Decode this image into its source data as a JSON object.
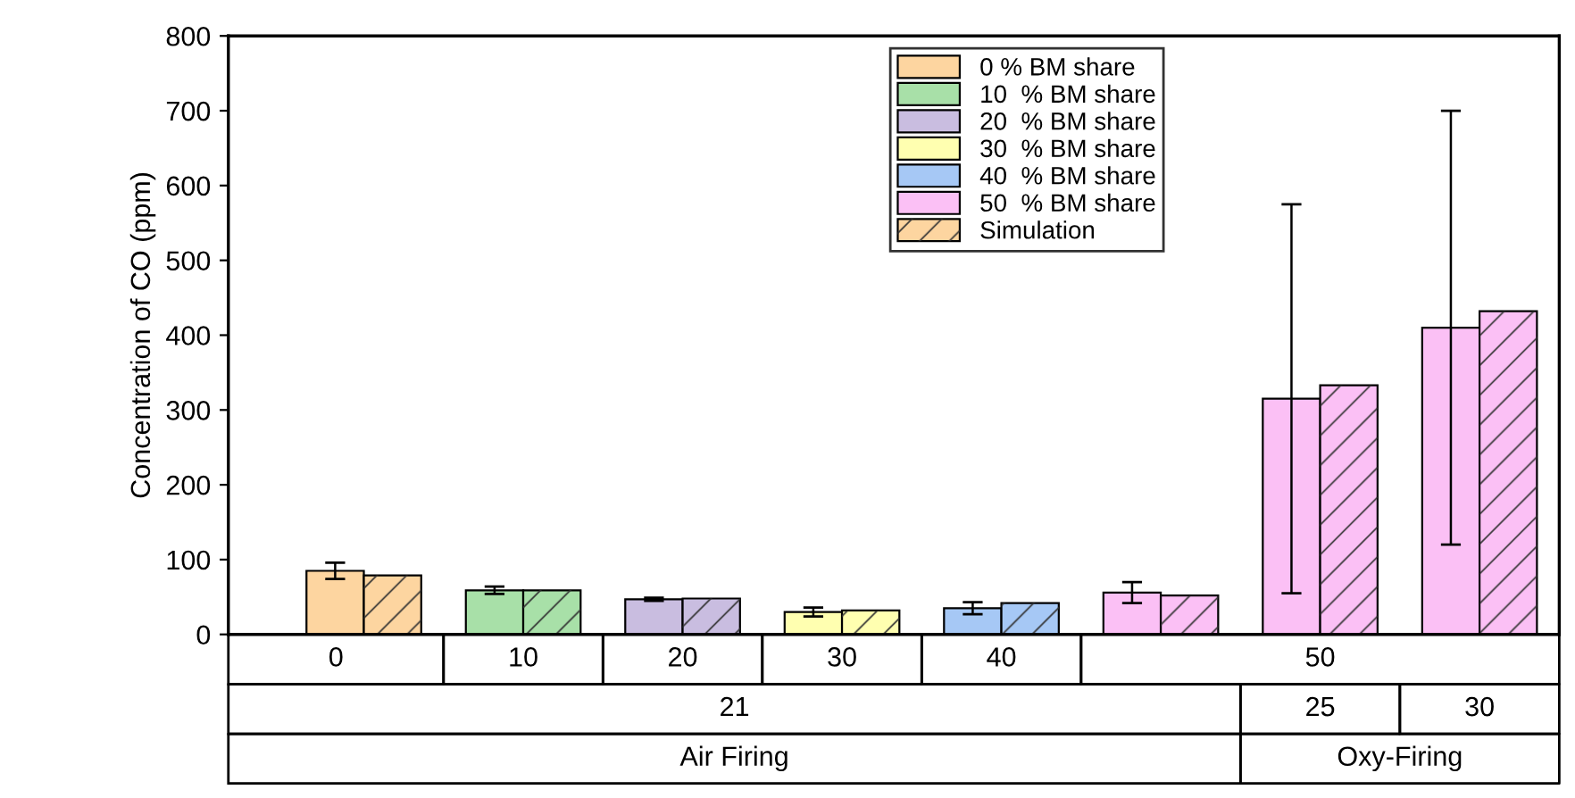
{
  "chart_data": {
    "type": "bar",
    "ylabel": "Concentration of CO (ppm)",
    "categories": [
      "0",
      "10",
      "20",
      "30",
      "40",
      null,
      null,
      null
    ],
    "annotations": [
      "50",
      "21",
      "25",
      "30",
      "Air Firing",
      "Oxy-Firing"
    ],
    "series": [
      {
        "name": "0 % BM share",
        "color": "#fdd5a0",
        "values": [
          85,
          null,
          null,
          null,
          null,
          null,
          null,
          null
        ],
        "errors": [
          11,
          null,
          null,
          null,
          null,
          null,
          null,
          null
        ]
      },
      {
        "name": "10  % BM share",
        "color": "#a8e0a8",
        "values": [
          null,
          59,
          null,
          null,
          null,
          null,
          null,
          null
        ],
        "errors": [
          null,
          5,
          null,
          null,
          null,
          null,
          null,
          null
        ]
      },
      {
        "name": "20  % BM share",
        "color": "#c9bde0",
        "values": [
          null,
          null,
          47,
          null,
          null,
          null,
          null,
          null
        ],
        "errors": [
          null,
          null,
          2,
          null,
          null,
          null,
          null,
          null
        ]
      },
      {
        "name": "30  % BM share",
        "color": "#ffffb0",
        "values": [
          null,
          null,
          null,
          30,
          null,
          null,
          null,
          null
        ],
        "errors": [
          null,
          null,
          null,
          6,
          null,
          null,
          null,
          null
        ]
      },
      {
        "name": "40  % BM share",
        "color": "#a6c8f5",
        "values": [
          null,
          null,
          null,
          null,
          35,
          null,
          null,
          null
        ],
        "errors": [
          null,
          null,
          null,
          null,
          8,
          null,
          null,
          null
        ]
      },
      {
        "name": "50  % BM share",
        "color": "#fbc0f5",
        "values": [
          null,
          null,
          null,
          null,
          null,
          56,
          315,
          410
        ],
        "errors": [
          null,
          null,
          null,
          null,
          null,
          14,
          260,
          290
        ]
      },
      {
        "name": "Simulation",
        "color": "#fdd5a0",
        "colors": [
          "#fdd5a0",
          "#a8e0a8",
          "#c9bde0",
          "#ffffb0",
          "#a6c8f5",
          "#fbc0f5",
          "#fbc0f5",
          "#fbc0f5"
        ],
        "values": [
          79,
          59,
          48,
          32,
          42,
          52,
          333,
          432
        ]
      }
    ],
    "ylim": [
      0,
      800
    ],
    "yticks": [
      0,
      100,
      200,
      300,
      400,
      500,
      600,
      700,
      800
    ],
    "legend": "top",
    "grid": false
  }
}
